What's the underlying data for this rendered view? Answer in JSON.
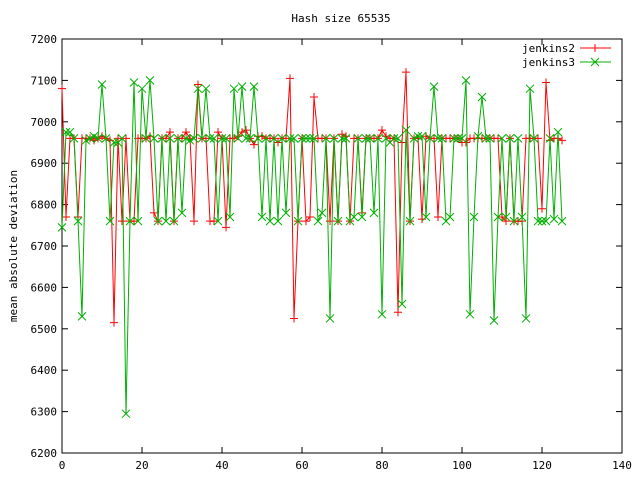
{
  "chart_data": {
    "type": "line",
    "title": "Hash size 65535",
    "xlabel": "",
    "ylabel": "mean absolute deviation",
    "xlim": [
      0,
      140
    ],
    "ylim": [
      6200,
      7200
    ],
    "xticks": [
      0,
      20,
      40,
      60,
      80,
      100,
      120,
      140
    ],
    "yticks": [
      6200,
      6300,
      6400,
      6500,
      6600,
      6700,
      6800,
      6900,
      7000,
      7100,
      7200
    ],
    "grid": false,
    "legend_position": "top-right",
    "x": [
      0,
      1,
      2,
      3,
      4,
      5,
      6,
      7,
      8,
      9,
      10,
      11,
      12,
      13,
      14,
      15,
      16,
      17,
      18,
      19,
      20,
      21,
      22,
      23,
      24,
      25,
      26,
      27,
      28,
      29,
      30,
      31,
      32,
      33,
      34,
      35,
      36,
      37,
      38,
      39,
      40,
      41,
      42,
      43,
      44,
      45,
      46,
      47,
      48,
      49,
      50,
      51,
      52,
      53,
      54,
      55,
      56,
      57,
      58,
      59,
      60,
      61,
      62,
      63,
      64,
      65,
      66,
      67,
      68,
      69,
      70,
      71,
      72,
      73,
      74,
      75,
      76,
      77,
      78,
      79,
      80,
      81,
      82,
      83,
      84,
      85,
      86,
      87,
      88,
      89,
      90,
      91,
      92,
      93,
      94,
      95,
      96,
      97,
      98,
      99,
      100,
      101,
      102,
      103,
      104,
      105,
      106,
      107,
      108,
      109,
      110,
      111,
      112,
      113,
      114,
      115,
      116,
      117,
      118,
      119,
      120,
      121,
      122,
      123,
      124,
      125
    ],
    "series": [
      {
        "name": "jenkins2",
        "color": "#ff0000",
        "marker": "plus",
        "values": [
          7080,
          6770,
          6960,
          6960,
          6770,
          6960,
          6960,
          6960,
          6955,
          6960,
          6965,
          6960,
          6955,
          6515,
          6960,
          6760,
          6960,
          6760,
          6760,
          6960,
          6960,
          6960,
          6965,
          6780,
          6760,
          6960,
          6960,
          6975,
          6760,
          6960,
          6960,
          6975,
          6960,
          6760,
          7090,
          6960,
          6960,
          6760,
          6760,
          6975,
          6960,
          6745,
          6960,
          6960,
          6965,
          6975,
          6980,
          6960,
          6945,
          6965,
          6965,
          6960,
          6960,
          6960,
          6950,
          6960,
          6960,
          7105,
          6525,
          6760,
          6960,
          6760,
          6770,
          7060,
          6960,
          6960,
          6960,
          6760,
          6960,
          6760,
          6970,
          6965,
          6760,
          6960,
          6960,
          6780,
          6960,
          6960,
          6960,
          6960,
          6980,
          6965,
          6960,
          6960,
          6540,
          6950,
          7120,
          6760,
          6960,
          6960,
          6765,
          6965,
          6960,
          6960,
          6770,
          6960,
          6960,
          6960,
          6960,
          6960,
          6950,
          6950,
          6960,
          6960,
          6960,
          6960,
          6960,
          6960,
          6960,
          6960,
          6770,
          6760,
          6960,
          6760,
          6760,
          6760,
          6960,
          6960,
          6960,
          6960,
          6790,
          7095,
          6955,
          6960,
          6960,
          6955
        ]
      },
      {
        "name": "jenkins3",
        "color": "#00b000",
        "marker": "cross",
        "values": [
          6745,
          6975,
          6975,
          6960,
          6760,
          6530,
          6955,
          6960,
          6965,
          6960,
          7090,
          6960,
          6760,
          6950,
          6950,
          6960,
          6295,
          6760,
          7095,
          6760,
          7080,
          6960,
          7100,
          6960,
          6760,
          6960,
          6760,
          6960,
          6760,
          6960,
          6780,
          6960,
          6955,
          6960,
          7080,
          6960,
          7080,
          6960,
          6960,
          6760,
          6960,
          6960,
          6770,
          7080,
          6960,
          7085,
          6960,
          6960,
          7085,
          6960,
          6770,
          6960,
          6760,
          6960,
          6760,
          6960,
          6780,
          6960,
          6960,
          6760,
          6960,
          6960,
          6960,
          6960,
          6760,
          6780,
          6960,
          6525,
          6960,
          6760,
          6960,
          6960,
          6760,
          6770,
          6960,
          6770,
          6960,
          6960,
          6780,
          6960,
          6535,
          6960,
          6950,
          6960,
          6960,
          6560,
          6980,
          6760,
          6960,
          6965,
          6965,
          6770,
          6960,
          7085,
          6960,
          6960,
          6760,
          6770,
          6960,
          6960,
          6960,
          7100,
          6535,
          6770,
          6965,
          7060,
          6960,
          6960,
          6520,
          6770,
          6960,
          6770,
          6960,
          6760,
          6960,
          6770,
          6525,
          7080,
          6960,
          6760,
          6760,
          6760,
          6960,
          6765,
          6975,
          6760
        ]
      }
    ]
  }
}
